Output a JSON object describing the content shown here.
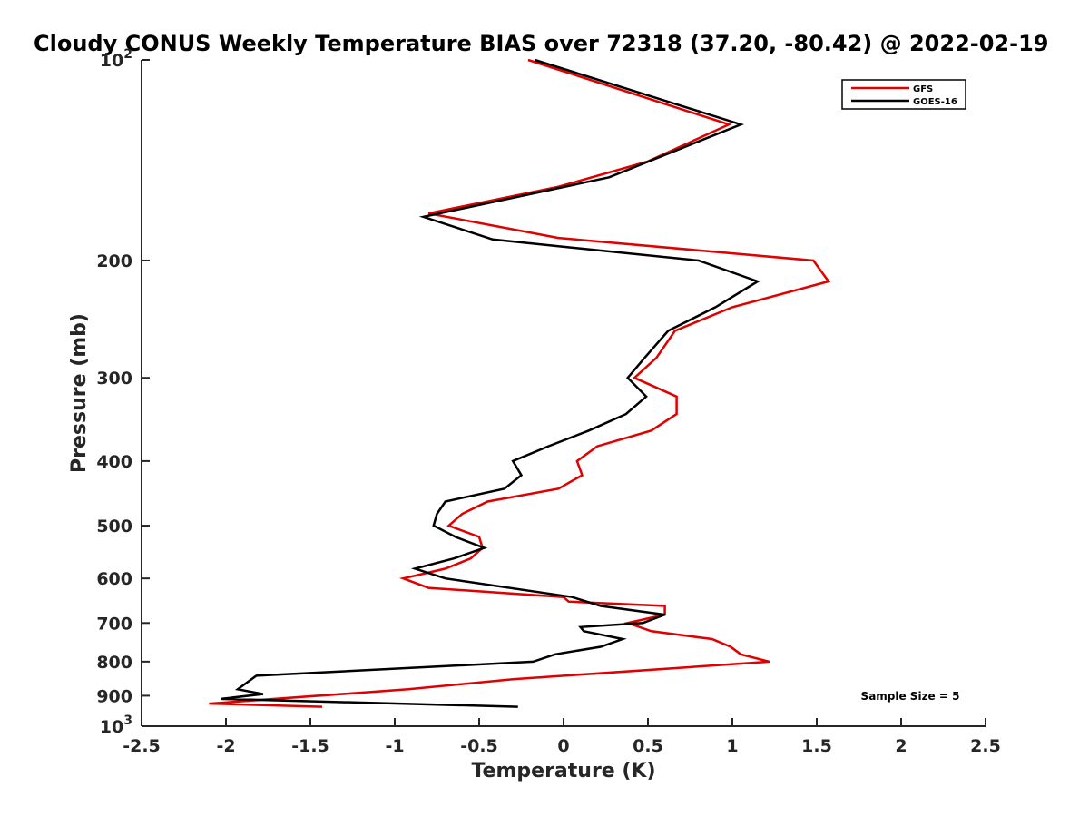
{
  "chart_data": {
    "type": "line",
    "title": "Cloudy CONUS Weekly Temperature BIAS over 72318 (37.20, -80.42) @ 2022-02-19",
    "xlabel": "Temperature (K)",
    "ylabel": "Pressure (mb)",
    "xlim": [
      -2.5,
      2.5
    ],
    "ylim": [
      100,
      1000
    ],
    "yscale": "log",
    "y_reversed": true,
    "grid": false,
    "legend_position": "top-right",
    "x_ticks": [
      -2.5,
      -2,
      -1.5,
      -1,
      -0.5,
      0,
      0.5,
      1,
      1.5,
      2,
      2.5
    ],
    "x_tick_labels": [
      "-2.5",
      "-2",
      "-1.5",
      "-1",
      "-0.5",
      "0",
      "0.5",
      "1",
      "1.5",
      "2",
      "2.5"
    ],
    "y_ticks": [
      100,
      200,
      300,
      400,
      500,
      600,
      700,
      800,
      900,
      1000
    ],
    "y_tick_labels": [
      {
        "base": "10",
        "exp": "2"
      },
      {
        "base": "200",
        "exp": ""
      },
      {
        "base": "300",
        "exp": ""
      },
      {
        "base": "400",
        "exp": ""
      },
      {
        "base": "500",
        "exp": ""
      },
      {
        "base": "600",
        "exp": ""
      },
      {
        "base": "700",
        "exp": ""
      },
      {
        "base": "800",
        "exp": ""
      },
      {
        "base": "900",
        "exp": ""
      },
      {
        "base": "10",
        "exp": "3"
      }
    ],
    "annotation": "Sample Size = 5",
    "series": [
      {
        "name": "GFS",
        "color": "#e00000",
        "points": [
          [
            -0.21,
            100
          ],
          [
            0.98,
            125
          ],
          [
            0.5,
            142
          ],
          [
            -0.03,
            155
          ],
          [
            -0.8,
            170
          ],
          [
            -0.03,
            185
          ],
          [
            1.48,
            200
          ],
          [
            1.57,
            215
          ],
          [
            1.0,
            235
          ],
          [
            0.66,
            255
          ],
          [
            0.55,
            280
          ],
          [
            0.42,
            300
          ],
          [
            0.67,
            320
          ],
          [
            0.67,
            340
          ],
          [
            0.52,
            360
          ],
          [
            0.2,
            380
          ],
          [
            0.08,
            400
          ],
          [
            0.11,
            420
          ],
          [
            -0.03,
            440
          ],
          [
            -0.45,
            460
          ],
          [
            -0.6,
            480
          ],
          [
            -0.68,
            500
          ],
          [
            -0.5,
            520
          ],
          [
            -0.48,
            540
          ],
          [
            -0.55,
            560
          ],
          [
            -0.7,
            580
          ],
          [
            -0.95,
            600
          ],
          [
            -0.8,
            620
          ],
          [
            0.0,
            640
          ],
          [
            0.03,
            650
          ],
          [
            0.6,
            660
          ],
          [
            0.6,
            680
          ],
          [
            0.38,
            700
          ],
          [
            0.52,
            720
          ],
          [
            0.88,
            740
          ],
          [
            0.99,
            760
          ],
          [
            1.05,
            780
          ],
          [
            1.22,
            800
          ],
          [
            -0.3,
            850
          ],
          [
            -0.92,
            880
          ],
          [
            -2.1,
            925
          ],
          [
            -1.43,
            935
          ]
        ]
      },
      {
        "name": "GOES-16",
        "color": "#000000",
        "points": [
          [
            -0.17,
            100
          ],
          [
            1.05,
            125
          ],
          [
            0.27,
            150
          ],
          [
            -0.83,
            172
          ],
          [
            -0.42,
            186
          ],
          [
            0.8,
            200
          ],
          [
            1.15,
            215
          ],
          [
            0.9,
            235
          ],
          [
            0.62,
            255
          ],
          [
            0.48,
            280
          ],
          [
            0.38,
            300
          ],
          [
            0.49,
            320
          ],
          [
            0.37,
            340
          ],
          [
            0.15,
            360
          ],
          [
            -0.09,
            380
          ],
          [
            -0.3,
            400
          ],
          [
            -0.25,
            420
          ],
          [
            -0.35,
            440
          ],
          [
            -0.7,
            460
          ],
          [
            -0.75,
            480
          ],
          [
            -0.77,
            500
          ],
          [
            -0.64,
            520
          ],
          [
            -0.47,
            540
          ],
          [
            -0.65,
            560
          ],
          [
            -0.88,
            580
          ],
          [
            -0.7,
            600
          ],
          [
            0.05,
            640
          ],
          [
            0.22,
            660
          ],
          [
            0.6,
            680
          ],
          [
            0.47,
            700
          ],
          [
            0.1,
            710
          ],
          [
            0.12,
            720
          ],
          [
            0.35,
            740
          ],
          [
            0.22,
            760
          ],
          [
            -0.05,
            780
          ],
          [
            -0.18,
            800
          ],
          [
            -1.82,
            840
          ],
          [
            -1.93,
            880
          ],
          [
            -1.78,
            895
          ],
          [
            -2.03,
            910
          ],
          [
            -0.27,
            935
          ]
        ]
      }
    ]
  }
}
